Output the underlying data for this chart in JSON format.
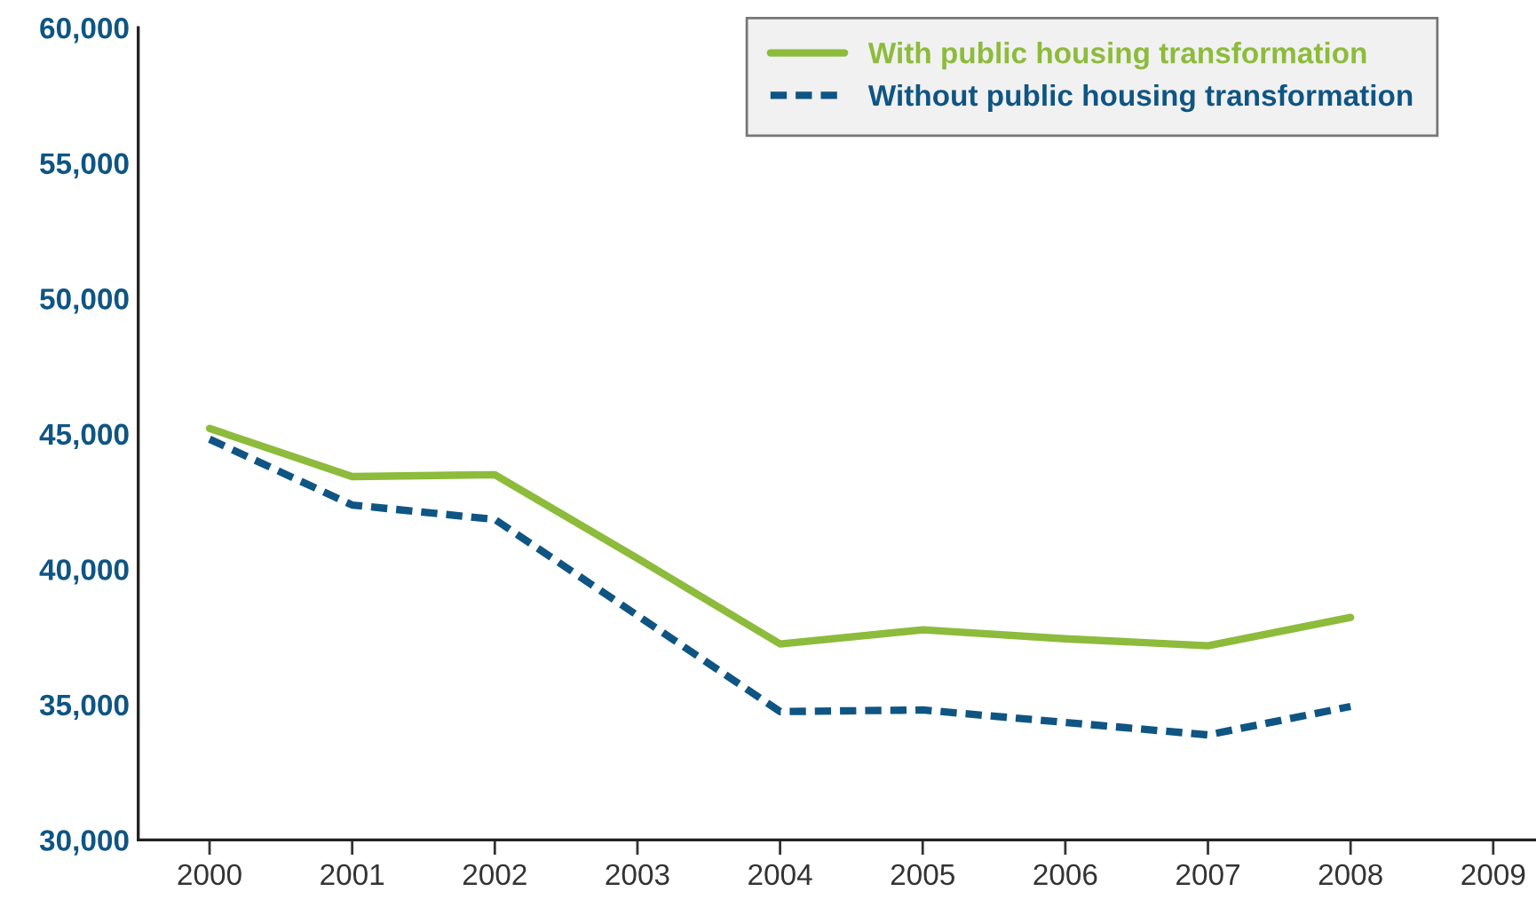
{
  "chart_data": {
    "type": "line",
    "x": [
      2000,
      2001,
      2002,
      2003,
      2004,
      2005,
      2006,
      2007,
      2008
    ],
    "series": [
      {
        "name": "With public housing transformation",
        "color": "#8dbb3c",
        "line_style": "solid",
        "values": [
          45200,
          43420,
          43490,
          40400,
          37240,
          37760,
          37430,
          37170,
          38220
        ]
      },
      {
        "name": "Without public housing transformation",
        "color": "#0f5583",
        "line_style": "dashed",
        "values": [
          44800,
          42370,
          41840,
          38290,
          34740,
          34800,
          34340,
          33880,
          34930
        ]
      }
    ],
    "xlim": [
      1999.5,
      2009.3
    ],
    "xticks": [
      2000,
      2001,
      2002,
      2003,
      2004,
      2005,
      2006,
      2007,
      2008,
      2009
    ],
    "ylim": [
      30000,
      60000
    ],
    "yticks": [
      {
        "value": 30000,
        "label": "30,000"
      },
      {
        "value": 35000,
        "label": "35,000"
      },
      {
        "value": 40000,
        "label": "40,000"
      },
      {
        "value": 45000,
        "label": "45,000"
      },
      {
        "value": 50000,
        "label": "50,000"
      },
      {
        "value": 55000,
        "label": "55,000"
      },
      {
        "value": 60000,
        "label": "60,000"
      }
    ],
    "grid": false,
    "legend": "top right",
    "marker": "none"
  }
}
